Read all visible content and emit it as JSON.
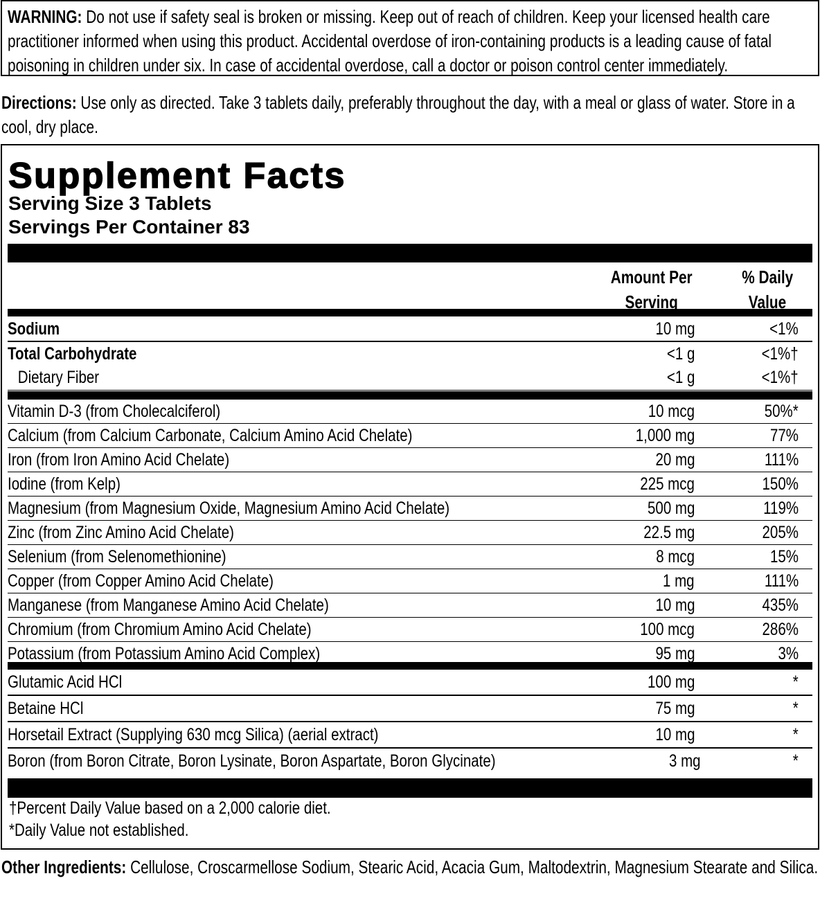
{
  "warning": {
    "label": "WARNING:",
    "text": " Do not use if safety seal is broken or missing. Keep out of reach of children. Keep your licensed health care practitioner informed when using this product. Accidental overdose of iron-containing products is a leading cause of fatal poisoning in children under six. In case of accidental overdose, call a doctor or poison control center immediately."
  },
  "directions": {
    "label": "Directions:",
    "text": " Use only as directed. Take 3 tablets daily, preferably throughout the day, with a meal or glass of water. Store in a cool, dry place."
  },
  "facts": {
    "title": "Supplement Facts",
    "serving_size": "Serving Size 3 Tablets",
    "servings_per_container": "Servings Per Container 83",
    "header_amount_1": "Amount Per",
    "header_amount_2": "Serving",
    "header_dv_1": "% Daily",
    "header_dv_2": "Value",
    "group1": [
      {
        "name": "Sodium",
        "amount": "10 mg",
        "dv": "<1%"
      },
      {
        "name": "Total Carbohydrate",
        "amount": "<1 g",
        "dv": "<1%†"
      },
      {
        "name": "Dietary Fiber",
        "amount": "<1 g",
        "dv": "<1%†"
      }
    ],
    "group2": [
      {
        "name": "Vitamin D-3 (from Cholecalciferol)",
        "amount": "10 mcg",
        "dv": "50%*"
      },
      {
        "name": "Calcium (from Calcium Carbonate, Calcium Amino Acid Chelate)",
        "amount": "1,000 mg",
        "dv": "77%"
      },
      {
        "name": "Iron (from Iron Amino Acid Chelate)",
        "amount": "20 mg",
        "dv": "111%"
      },
      {
        "name": "Iodine (from Kelp)",
        "amount": "225 mcg",
        "dv": "150%"
      },
      {
        "name": "Magnesium (from Magnesium Oxide, Magnesium Amino Acid Chelate)",
        "amount": "500 mg",
        "dv": "119%"
      },
      {
        "name": "Zinc (from Zinc Amino Acid Chelate)",
        "amount": "22.5 mg",
        "dv": "205%"
      },
      {
        "name": "Selenium (from Selenomethionine)",
        "amount": "8 mcg",
        "dv": "15%"
      },
      {
        "name": "Copper (from Copper Amino Acid Chelate)",
        "amount": "1 mg",
        "dv": "111%"
      },
      {
        "name": "Manganese (from Manganese Amino Acid Chelate)",
        "amount": "10 mg",
        "dv": "435%"
      },
      {
        "name": "Chromium (from Chromium Amino Acid Chelate)",
        "amount": "100 mcg",
        "dv": "286%"
      },
      {
        "name": "Potassium (from Potassium Amino Acid Complex)",
        "amount": "95 mg",
        "dv": "3%"
      }
    ],
    "group3": [
      {
        "name": "Glutamic Acid HCl",
        "amount": "100 mg",
        "dv": "*"
      },
      {
        "name": "Betaine HCl",
        "amount": "75 mg",
        "dv": "*"
      },
      {
        "name": "Horsetail Extract (Supplying 630 mcg Silica) (aerial extract)",
        "amount": "10 mg",
        "dv": "*"
      },
      {
        "name": "Boron (from Boron Citrate, Boron Lysinate, Boron Aspartate, Boron Glycinate)",
        "amount": "3 mg",
        "dv": "*"
      }
    ],
    "footnote_1": "†Percent Daily Value based on a 2,000 calorie diet.",
    "footnote_2": "*Daily Value not established."
  },
  "other_ingredients": {
    "label": "Other Ingredients:",
    "text": " Cellulose, Croscarmellose Sodium, Stearic Acid, Acacia Gum, Maltodextrin, Magnesium Stearate and Silica."
  }
}
